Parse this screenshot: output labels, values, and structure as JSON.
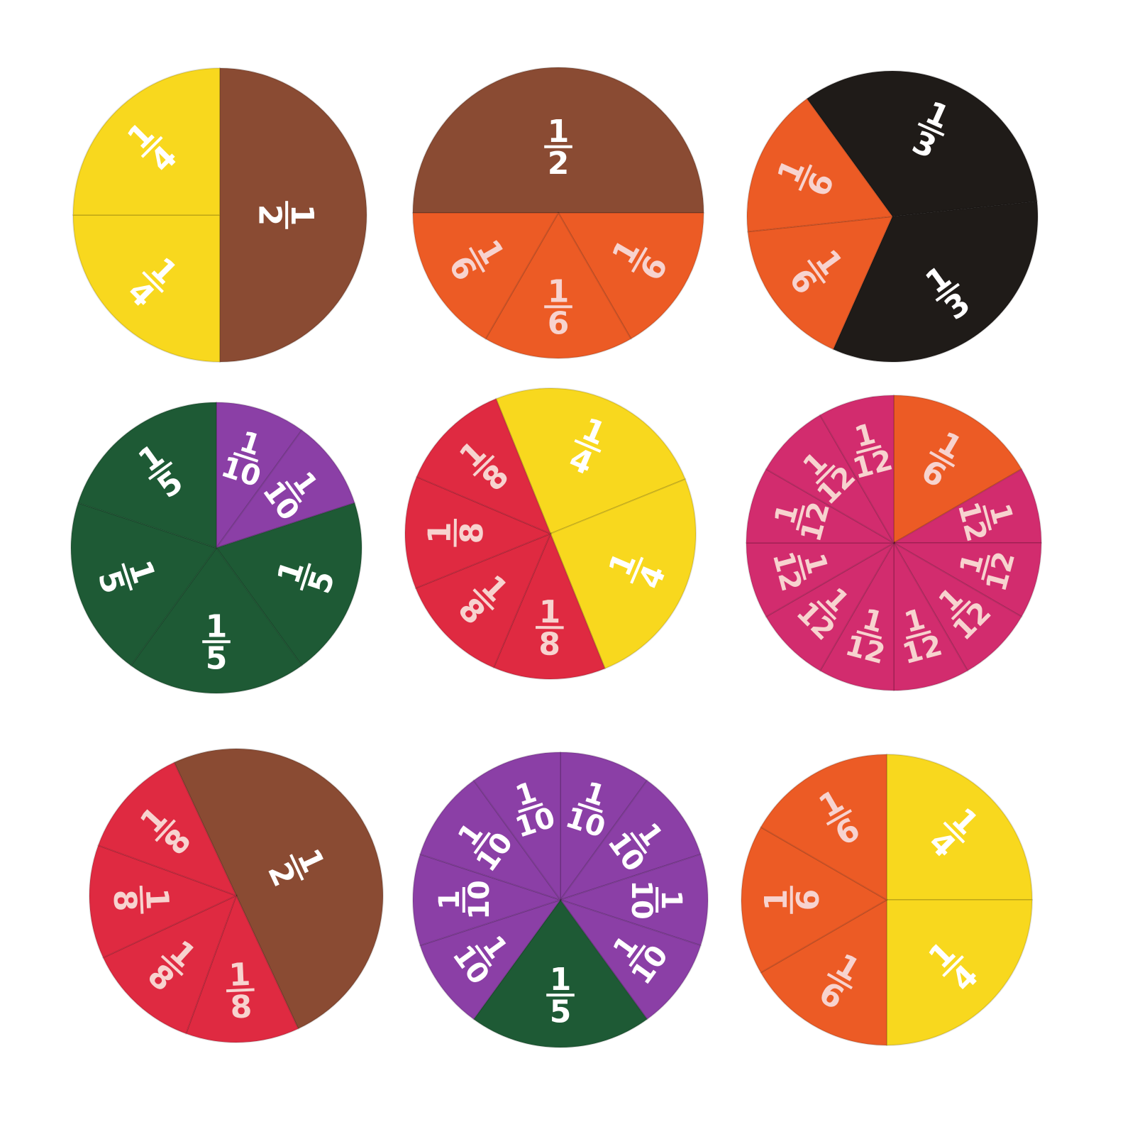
{
  "colors": {
    "yellow": "#f8d81e",
    "brown": "#8a4b33",
    "orange": "#ec5b25",
    "black": "#1f1b18",
    "green": "#1e5a35",
    "purple": "#8b3fa6",
    "red": "#df2a41",
    "pink": "#d22c6e"
  },
  "circles": [
    {
      "segments": [
        {
          "num": "1",
          "den": "4",
          "color": "yellow"
        },
        {
          "num": "1",
          "den": "4",
          "color": "yellow"
        },
        {
          "num": "1",
          "den": "2",
          "color": "brown"
        }
      ]
    },
    {
      "segments": [
        {
          "num": "1",
          "den": "2",
          "color": "brown"
        },
        {
          "num": "1",
          "den": "6",
          "color": "orange"
        },
        {
          "num": "1",
          "den": "6",
          "color": "orange"
        },
        {
          "num": "1",
          "den": "6",
          "color": "orange"
        }
      ]
    },
    {
      "segments": [
        {
          "num": "1",
          "den": "3",
          "color": "black"
        },
        {
          "num": "1",
          "den": "3",
          "color": "black"
        },
        {
          "num": "1",
          "den": "6",
          "color": "orange"
        },
        {
          "num": "1",
          "den": "6",
          "color": "orange"
        }
      ]
    },
    {
      "segments": [
        {
          "num": "1",
          "den": "10",
          "color": "purple"
        },
        {
          "num": "1",
          "den": "10",
          "color": "purple"
        },
        {
          "num": "1",
          "den": "5",
          "color": "green"
        },
        {
          "num": "1",
          "den": "5",
          "color": "green"
        },
        {
          "num": "1",
          "den": "5",
          "color": "green"
        },
        {
          "num": "1",
          "den": "5",
          "color": "green"
        }
      ]
    },
    {
      "segments": [
        {
          "num": "1",
          "den": "4",
          "color": "yellow"
        },
        {
          "num": "1",
          "den": "4",
          "color": "yellow"
        },
        {
          "num": "1",
          "den": "8",
          "color": "red"
        },
        {
          "num": "1",
          "den": "8",
          "color": "red"
        },
        {
          "num": "1",
          "den": "8",
          "color": "red"
        },
        {
          "num": "1",
          "den": "8",
          "color": "red"
        }
      ]
    },
    {
      "segments": [
        {
          "num": "1",
          "den": "6",
          "color": "orange"
        },
        {
          "num": "1",
          "den": "12",
          "color": "pink"
        },
        {
          "num": "1",
          "den": "12",
          "color": "pink"
        },
        {
          "num": "1",
          "den": "12",
          "color": "pink"
        },
        {
          "num": "1",
          "den": "12",
          "color": "pink"
        },
        {
          "num": "1",
          "den": "12",
          "color": "pink"
        },
        {
          "num": "1",
          "den": "12",
          "color": "pink"
        },
        {
          "num": "1",
          "den": "12",
          "color": "pink"
        },
        {
          "num": "1",
          "den": "12",
          "color": "pink"
        },
        {
          "num": "1",
          "den": "12",
          "color": "pink"
        },
        {
          "num": "1",
          "den": "12",
          "color": "pink"
        }
      ]
    },
    {
      "segments": [
        {
          "num": "1",
          "den": "2",
          "color": "brown"
        },
        {
          "num": "1",
          "den": "8",
          "color": "red"
        },
        {
          "num": "1",
          "den": "8",
          "color": "red"
        },
        {
          "num": "1",
          "den": "8",
          "color": "red"
        },
        {
          "num": "1",
          "den": "8",
          "color": "red"
        }
      ]
    },
    {
      "segments": [
        {
          "num": "1",
          "den": "10",
          "color": "purple"
        },
        {
          "num": "1",
          "den": "10",
          "color": "purple"
        },
        {
          "num": "1",
          "den": "10",
          "color": "purple"
        },
        {
          "num": "1",
          "den": "10",
          "color": "purple"
        },
        {
          "num": "1",
          "den": "5",
          "color": "green"
        },
        {
          "num": "1",
          "den": "10",
          "color": "purple"
        },
        {
          "num": "1",
          "den": "10",
          "color": "purple"
        },
        {
          "num": "1",
          "den": "10",
          "color": "purple"
        },
        {
          "num": "1",
          "den": "10",
          "color": "purple"
        }
      ]
    },
    {
      "segments": [
        {
          "num": "1",
          "den": "4",
          "color": "yellow"
        },
        {
          "num": "1",
          "den": "4",
          "color": "yellow"
        },
        {
          "num": "1",
          "den": "6",
          "color": "orange"
        },
        {
          "num": "1",
          "den": "6",
          "color": "orange"
        },
        {
          "num": "1",
          "den": "6",
          "color": "orange"
        }
      ]
    }
  ]
}
